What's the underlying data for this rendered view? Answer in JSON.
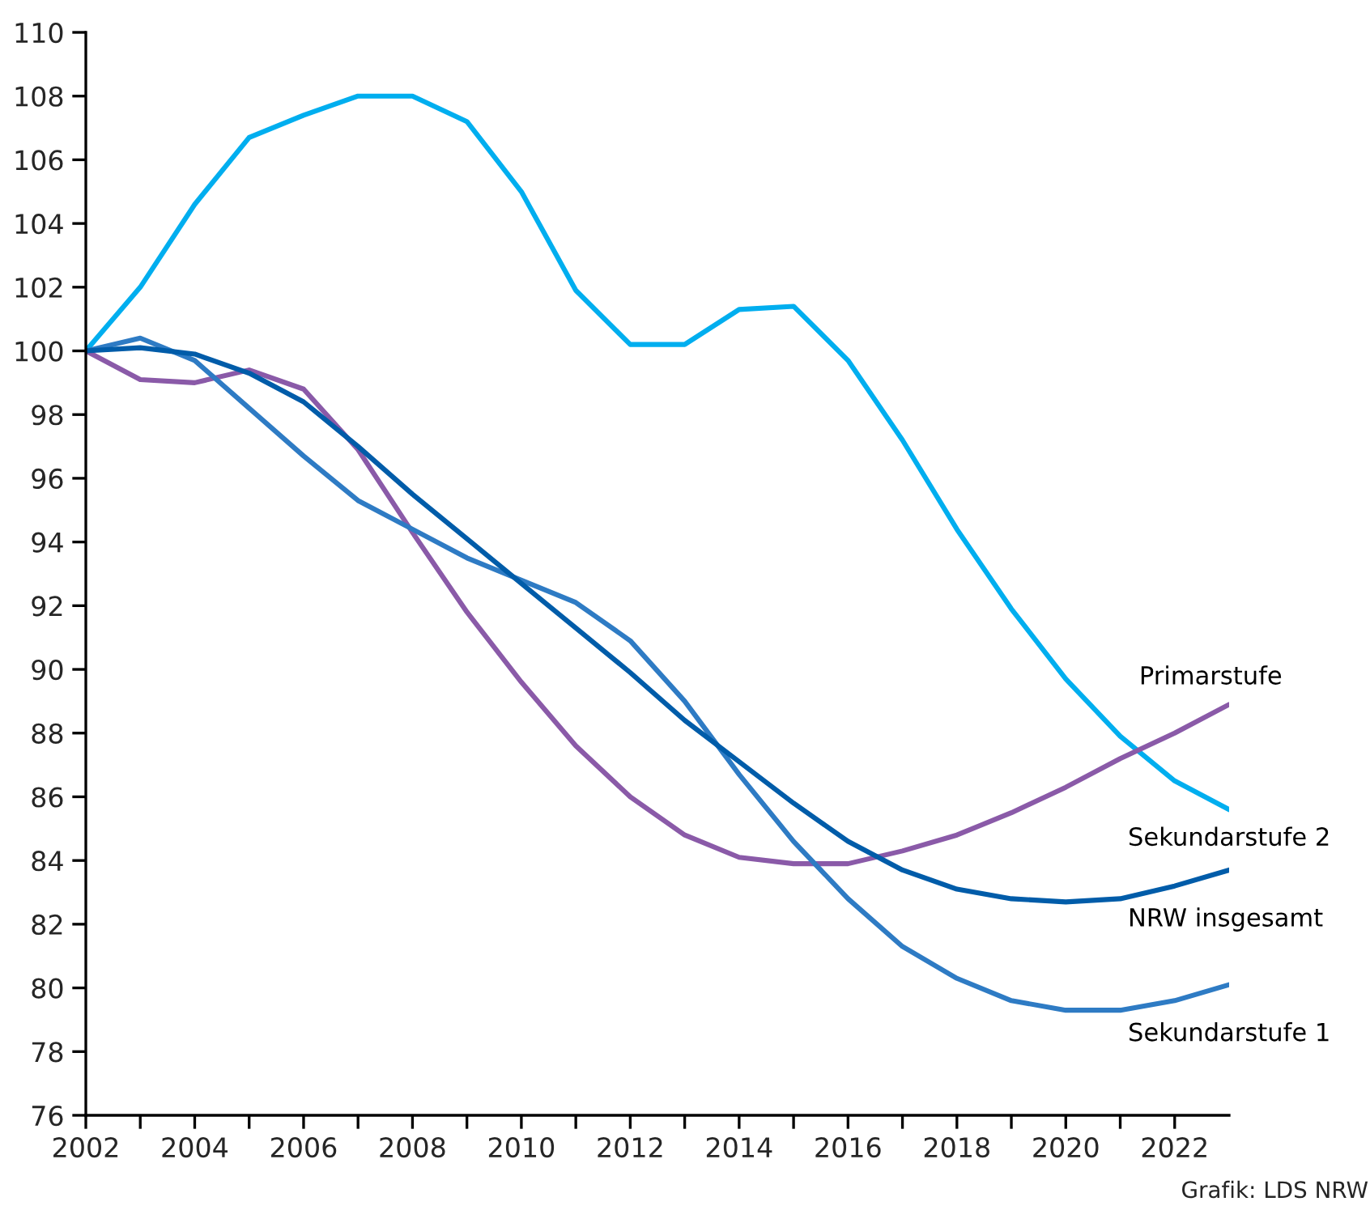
{
  "chart_data": {
    "type": "line",
    "x": [
      2002,
      2003,
      2004,
      2005,
      2006,
      2007,
      2008,
      2009,
      2010,
      2011,
      2012,
      2013,
      2014,
      2015,
      2016,
      2017,
      2018,
      2019,
      2020,
      2021,
      2022,
      2023
    ],
    "series": [
      {
        "name": "Sekundarstufe 2",
        "color": "#00aeef",
        "values": [
          100,
          102,
          104.6,
          106.7,
          107.4,
          108,
          108,
          107.2,
          105,
          101.9,
          100.2,
          100.2,
          101.3,
          101.4,
          99.7,
          97.2,
          94.4,
          91.9,
          89.7,
          87.9,
          86.5,
          85.6
        ]
      },
      {
        "name": "Primarstufe",
        "color": "#8a5aa8",
        "values": [
          100,
          99.1,
          99,
          99.4,
          98.8,
          96.9,
          94.3,
          91.8,
          89.6,
          87.6,
          86,
          84.8,
          84.1,
          83.9,
          83.9,
          84.3,
          84.8,
          85.5,
          86.3,
          87.2,
          88,
          88.9
        ]
      },
      {
        "name": "Sekundarstufe 1",
        "color": "#2e7bc4",
        "values": [
          100,
          100.4,
          99.7,
          98.2,
          96.7,
          95.3,
          94.4,
          93.5,
          92.8,
          92.1,
          90.9,
          89,
          86.7,
          84.6,
          82.8,
          81.3,
          80.3,
          79.6,
          79.3,
          79.3,
          79.6,
          80.1
        ]
      },
      {
        "name": "NRW insgesamt",
        "color": "#005ca9",
        "values": [
          100,
          100.1,
          99.9,
          99.3,
          98.4,
          97,
          95.5,
          94.1,
          92.7,
          91.3,
          89.9,
          88.4,
          87.1,
          85.8,
          84.6,
          83.7,
          83.1,
          82.8,
          82.7,
          82.8,
          83.2,
          83.7
        ]
      }
    ],
    "xlim": [
      2002,
      2023
    ],
    "xticks": [
      2002,
      {
        "value": 2003,
        "label": null
      },
      2004,
      {
        "value": 2005,
        "label": null
      },
      2006,
      {
        "value": 2007,
        "label": null
      },
      2008,
      {
        "value": 2009,
        "label": null
      },
      2010,
      {
        "value": 2011,
        "label": null
      },
      2012,
      {
        "value": 2013,
        "label": null
      },
      2014,
      {
        "value": 2015,
        "label": null
      },
      2016,
      {
        "value": 2017,
        "label": null
      },
      2018,
      {
        "value": 2019,
        "label": null
      },
      2020,
      {
        "value": 2021,
        "label": null
      },
      2022
    ],
    "ylim": [
      76,
      110
    ],
    "yticks": [
      76,
      78,
      80,
      82,
      84,
      86,
      88,
      90,
      92,
      94,
      96,
      98,
      100,
      102,
      104,
      106,
      108,
      110
    ],
    "grid": false,
    "legend": false,
    "marker": "none",
    "line_style": "solid",
    "annotations": [
      "Grafik: LDS NRW"
    ]
  }
}
